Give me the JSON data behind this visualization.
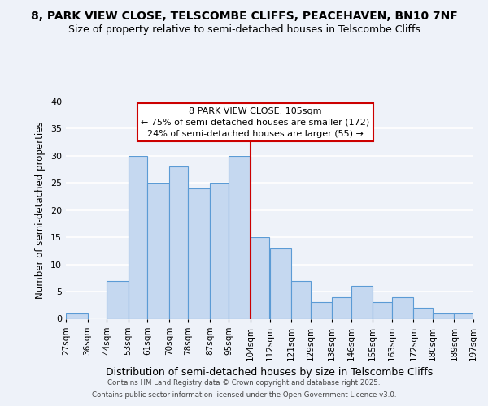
{
  "title1": "8, PARK VIEW CLOSE, TELSCOMBE CLIFFS, PEACEHAVEN, BN10 7NF",
  "title2": "Size of property relative to semi-detached houses in Telscombe Cliffs",
  "xlabel": "Distribution of semi-detached houses by size in Telscombe Cliffs",
  "ylabel": "Number of semi-detached properties",
  "bins": [
    27,
    36,
    44,
    53,
    61,
    70,
    78,
    87,
    95,
    104,
    112,
    121,
    129,
    138,
    146,
    155,
    163,
    172,
    180,
    189,
    197
  ],
  "counts": [
    1,
    0,
    7,
    30,
    25,
    28,
    24,
    25,
    30,
    15,
    13,
    7,
    3,
    4,
    6,
    3,
    4,
    2,
    1,
    1
  ],
  "bar_color": "#c5d8f0",
  "bar_edge_color": "#5b9bd5",
  "vline_x": 104,
  "vline_color": "#cc0000",
  "annotation_title": "8 PARK VIEW CLOSE: 105sqm",
  "annotation_line1": "← 75% of semi-detached houses are smaller (172)",
  "annotation_line2": "24% of semi-detached houses are larger (55) →",
  "annotation_box_color": "#ffffff",
  "annotation_box_edge": "#cc0000",
  "ylim": [
    0,
    40
  ],
  "yticks": [
    0,
    5,
    10,
    15,
    20,
    25,
    30,
    35,
    40
  ],
  "tick_labels": [
    "27sqm",
    "36sqm",
    "44sqm",
    "53sqm",
    "61sqm",
    "70sqm",
    "78sqm",
    "87sqm",
    "95sqm",
    "104sqm",
    "112sqm",
    "121sqm",
    "129sqm",
    "138sqm",
    "146sqm",
    "155sqm",
    "163sqm",
    "172sqm",
    "180sqm",
    "189sqm",
    "197sqm"
  ],
  "footer1": "Contains HM Land Registry data © Crown copyright and database right 2025.",
  "footer2": "Contains public sector information licensed under the Open Government Licence v3.0.",
  "bg_color": "#eef2f9",
  "plot_bg_color": "#eef2f9",
  "grid_color": "#ffffff",
  "title1_fontsize": 10,
  "title2_fontsize": 9
}
